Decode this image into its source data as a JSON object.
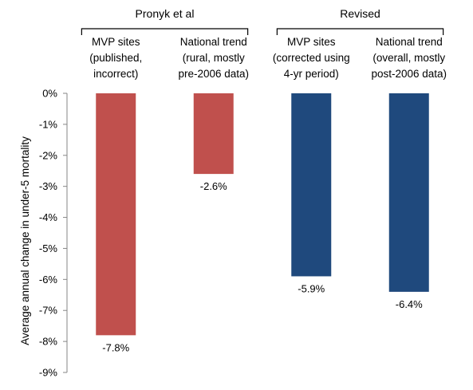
{
  "chart_data": {
    "type": "bar",
    "ylabel": "Average annual change in under-5 mortality",
    "ylim": [
      -9,
      0
    ],
    "y_ticks": [
      {
        "value": 0,
        "label": "0%"
      },
      {
        "value": -1,
        "label": "-1%"
      },
      {
        "value": -2,
        "label": "-2%"
      },
      {
        "value": -3,
        "label": "-3%"
      },
      {
        "value": -4,
        "label": "-4%"
      },
      {
        "value": -5,
        "label": "-5%"
      },
      {
        "value": -6,
        "label": "-6%"
      },
      {
        "value": -7,
        "label": "-7%"
      },
      {
        "value": -8,
        "label": "-8%"
      },
      {
        "value": -9,
        "label": "-9%"
      }
    ],
    "groups": [
      {
        "label": "Pronyk et al",
        "categories": [
          0,
          1
        ]
      },
      {
        "label": "Revised",
        "categories": [
          2,
          3
        ]
      }
    ],
    "categories": [
      [
        "MVP sites",
        "(published,",
        "incorrect)"
      ],
      [
        "National trend",
        "(rural, mostly",
        "pre-2006 data)"
      ],
      [
        "MVP sites",
        "(corrected using",
        "4-yr period)"
      ],
      [
        "National trend",
        "(overall, mostly",
        "post-2006 data)"
      ]
    ],
    "values": [
      -7.8,
      -2.6,
      -5.9,
      -6.4
    ],
    "data_labels": [
      "-7.8%",
      "-2.6%",
      "-5.9%",
      "-6.4%"
    ],
    "bar_colors": [
      "#c0504d",
      "#c0504d",
      "#1f497d",
      "#1f497d"
    ],
    "grid": false,
    "legend": "none"
  }
}
